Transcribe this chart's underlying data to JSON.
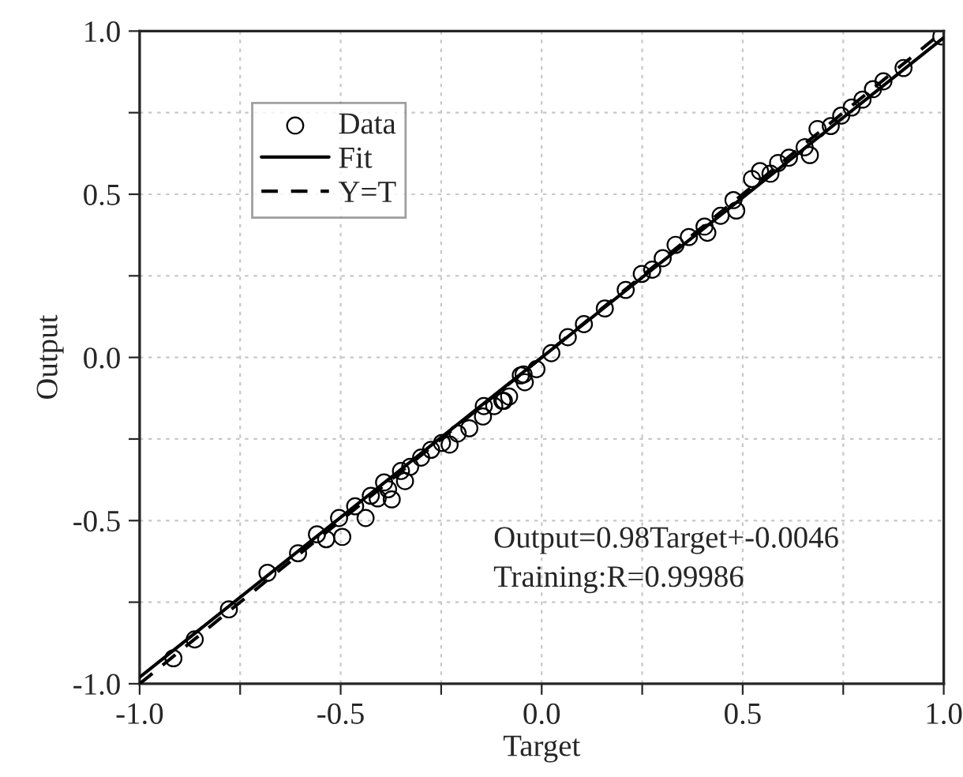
{
  "chart_data": {
    "type": "scatter",
    "xlabel": "Target",
    "ylabel": "Output",
    "xlim": [
      -1.0,
      1.0
    ],
    "ylim": [
      -1.0,
      1.0
    ],
    "xticks": [
      {
        "value": -1.0,
        "label": "-1.0"
      },
      {
        "value": -0.75,
        "label": null
      },
      {
        "value": -0.5,
        "label": "-0.5"
      },
      {
        "value": -0.25,
        "label": null
      },
      {
        "value": 0.0,
        "label": "0.0"
      },
      {
        "value": 0.25,
        "label": null
      },
      {
        "value": 0.5,
        "label": "0.5"
      },
      {
        "value": 0.75,
        "label": null
      },
      {
        "value": 1.0,
        "label": "1.0"
      }
    ],
    "yticks": [
      {
        "value": -1.0,
        "label": "-1.0"
      },
      {
        "value": -0.75,
        "label": null
      },
      {
        "value": -0.5,
        "label": "-0.5"
      },
      {
        "value": -0.25,
        "label": null
      },
      {
        "value": 0.0,
        "label": "0.0"
      },
      {
        "value": 0.25,
        "label": null
      },
      {
        "value": 0.5,
        "label": "0.5"
      },
      {
        "value": 0.75,
        "label": null
      },
      {
        "value": 1.0,
        "label": "1.0"
      }
    ],
    "grid": true,
    "legend": "top left",
    "annotations": [
      "Output=0.98Target+-0.0046",
      "Training:R=0.99986"
    ],
    "series": [
      {
        "name": "Data",
        "marker": "circle",
        "color": "#000000",
        "x": [
          -0.916,
          -0.863,
          -0.778,
          -0.682,
          -0.606,
          -0.559,
          -0.536,
          -0.504,
          -0.496,
          -0.464,
          -0.438,
          -0.425,
          -0.408,
          -0.392,
          -0.373,
          -0.382,
          -0.35,
          -0.34,
          -0.327,
          -0.3,
          -0.275,
          -0.248,
          -0.229,
          -0.209,
          -0.18,
          -0.146,
          -0.118,
          -0.094,
          -0.081,
          -0.052,
          -0.042,
          -0.144,
          -0.098,
          -0.045,
          -0.013,
          0.024,
          0.065,
          0.105,
          0.157,
          0.209,
          0.249,
          0.275,
          0.301,
          0.333,
          0.366,
          0.405,
          0.412,
          0.445,
          0.477,
          0.484,
          0.523,
          0.543,
          0.569,
          0.588,
          0.615,
          0.654,
          0.667,
          0.686,
          0.719,
          0.745,
          0.771,
          0.798,
          0.824,
          0.85,
          0.9,
          0.994
        ],
        "values": [
          -0.922,
          -0.864,
          -0.772,
          -0.66,
          -0.6,
          -0.542,
          -0.557,
          -0.492,
          -0.55,
          -0.456,
          -0.492,
          -0.424,
          -0.432,
          -0.383,
          -0.435,
          -0.404,
          -0.348,
          -0.379,
          -0.335,
          -0.307,
          -0.283,
          -0.262,
          -0.267,
          -0.233,
          -0.217,
          -0.181,
          -0.149,
          -0.133,
          -0.12,
          -0.055,
          -0.076,
          -0.149,
          -0.133,
          -0.052,
          -0.036,
          0.013,
          0.062,
          0.102,
          0.15,
          0.207,
          0.256,
          0.269,
          0.304,
          0.345,
          0.369,
          0.401,
          0.382,
          0.434,
          0.482,
          0.45,
          0.547,
          0.571,
          0.563,
          0.596,
          0.612,
          0.644,
          0.62,
          0.7,
          0.709,
          0.741,
          0.766,
          0.79,
          0.822,
          0.846,
          0.887,
          0.984
        ]
      },
      {
        "name": "Fit",
        "type": "line",
        "line_style": "solid",
        "color": "#000000",
        "x": [
          -1.0,
          1.0
        ],
        "values": [
          -0.98,
          0.98
        ]
      },
      {
        "name": "Y=T",
        "type": "line",
        "line_style": "dashed",
        "color": "#000000",
        "x": [
          -1.0,
          1.0
        ],
        "values": [
          -1.0,
          1.0
        ]
      }
    ]
  }
}
